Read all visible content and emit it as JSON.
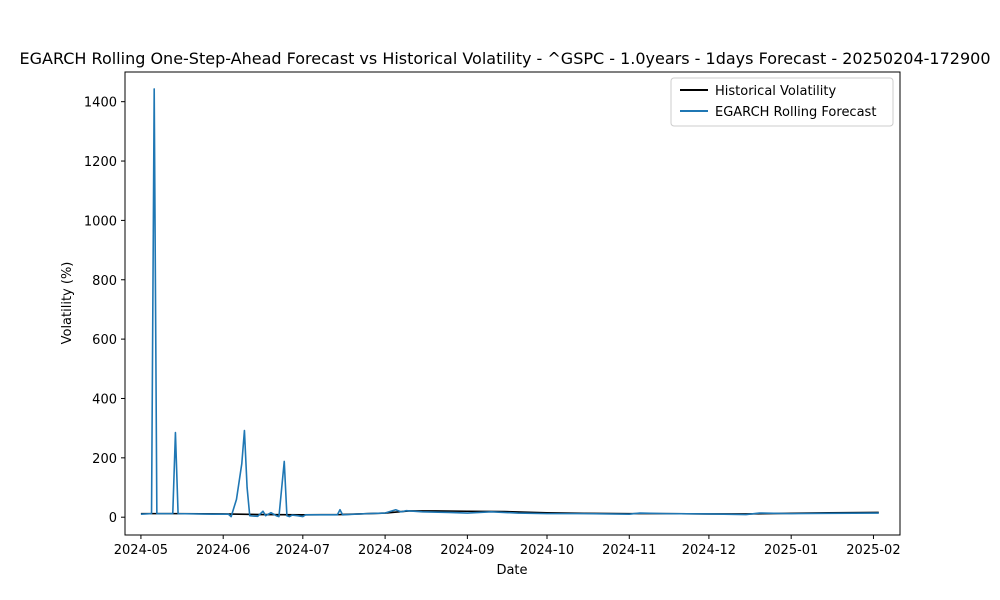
{
  "chart_data": {
    "type": "line",
    "title": "EGARCH Rolling One-Step-Ahead Forecast vs Historical Volatility - ^GSPC - 1.0years - 1days Forecast - 20250204-172900",
    "xlabel": "Date",
    "ylabel": "Volatility (%)",
    "xlim": [
      "2024-04-25",
      "2025-02-11"
    ],
    "ylim": [
      -60,
      1500
    ],
    "x_ticks": [
      "2024-05",
      "2024-06",
      "2024-07",
      "2024-08",
      "2024-09",
      "2024-10",
      "2024-11",
      "2024-12",
      "2025-01",
      "2025-02"
    ],
    "x_tick_dates": [
      "2024-05-01",
      "2024-06-01",
      "2024-07-01",
      "2024-08-01",
      "2024-09-01",
      "2024-10-01",
      "2024-11-01",
      "2024-12-01",
      "2025-01-01",
      "2025-02-01"
    ],
    "y_ticks": [
      0,
      200,
      400,
      600,
      800,
      1000,
      1200,
      1400
    ],
    "grid": false,
    "legend_position": "upper right",
    "series": [
      {
        "name": "Historical Volatility",
        "color": "#000000",
        "points": [
          [
            "2024-05-01",
            12
          ],
          [
            "2024-05-15",
            12
          ],
          [
            "2024-06-01",
            11
          ],
          [
            "2024-06-15",
            9
          ],
          [
            "2024-07-01",
            8
          ],
          [
            "2024-07-15",
            9
          ],
          [
            "2024-08-01",
            14
          ],
          [
            "2024-08-10",
            21
          ],
          [
            "2024-08-20",
            21
          ],
          [
            "2024-09-01",
            20
          ],
          [
            "2024-09-15",
            19
          ],
          [
            "2024-10-01",
            15
          ],
          [
            "2024-10-15",
            13
          ],
          [
            "2024-11-01",
            12
          ],
          [
            "2024-11-15",
            12
          ],
          [
            "2024-12-01",
            11
          ],
          [
            "2024-12-15",
            11
          ],
          [
            "2025-01-01",
            13
          ],
          [
            "2025-01-15",
            15
          ],
          [
            "2025-02-03",
            16
          ]
        ]
      },
      {
        "name": "EGARCH Rolling Forecast",
        "color": "#1f77b4",
        "points": [
          [
            "2024-05-01",
            10
          ],
          [
            "2024-05-05",
            12
          ],
          [
            "2024-05-06",
            1443
          ],
          [
            "2024-05-07",
            12
          ],
          [
            "2024-05-13",
            12
          ],
          [
            "2024-05-14",
            285
          ],
          [
            "2024-05-15",
            12
          ],
          [
            "2024-05-28",
            10
          ],
          [
            "2024-06-03",
            10
          ],
          [
            "2024-06-04",
            2
          ],
          [
            "2024-06-06",
            60
          ],
          [
            "2024-06-08",
            180
          ],
          [
            "2024-06-09",
            292
          ],
          [
            "2024-06-10",
            100
          ],
          [
            "2024-06-11",
            5
          ],
          [
            "2024-06-12",
            4
          ],
          [
            "2024-06-14",
            3
          ],
          [
            "2024-06-16",
            20
          ],
          [
            "2024-06-17",
            5
          ],
          [
            "2024-06-19",
            15
          ],
          [
            "2024-06-21",
            5
          ],
          [
            "2024-06-22",
            2
          ],
          [
            "2024-06-24",
            188
          ],
          [
            "2024-06-25",
            5
          ],
          [
            "2024-06-26",
            2
          ],
          [
            "2024-06-27",
            7
          ],
          [
            "2024-06-29",
            5
          ],
          [
            "2024-07-01",
            2
          ],
          [
            "2024-07-02",
            8
          ],
          [
            "2024-07-14",
            8
          ],
          [
            "2024-07-15",
            25
          ],
          [
            "2024-07-16",
            8
          ],
          [
            "2024-07-25",
            12
          ],
          [
            "2024-08-01",
            14
          ],
          [
            "2024-08-05",
            25
          ],
          [
            "2024-08-07",
            18
          ],
          [
            "2024-08-09",
            22
          ],
          [
            "2024-08-15",
            18
          ],
          [
            "2024-08-25",
            16
          ],
          [
            "2024-09-01",
            14
          ],
          [
            "2024-09-10",
            18
          ],
          [
            "2024-09-20",
            14
          ],
          [
            "2024-10-01",
            12
          ],
          [
            "2024-10-15",
            12
          ],
          [
            "2024-11-01",
            10
          ],
          [
            "2024-11-05",
            14
          ],
          [
            "2024-11-15",
            12
          ],
          [
            "2024-12-01",
            11
          ],
          [
            "2024-12-15",
            9
          ],
          [
            "2024-12-20",
            14
          ],
          [
            "2025-01-01",
            12
          ],
          [
            "2025-01-15",
            13
          ],
          [
            "2025-02-03",
            14
          ]
        ]
      }
    ]
  }
}
